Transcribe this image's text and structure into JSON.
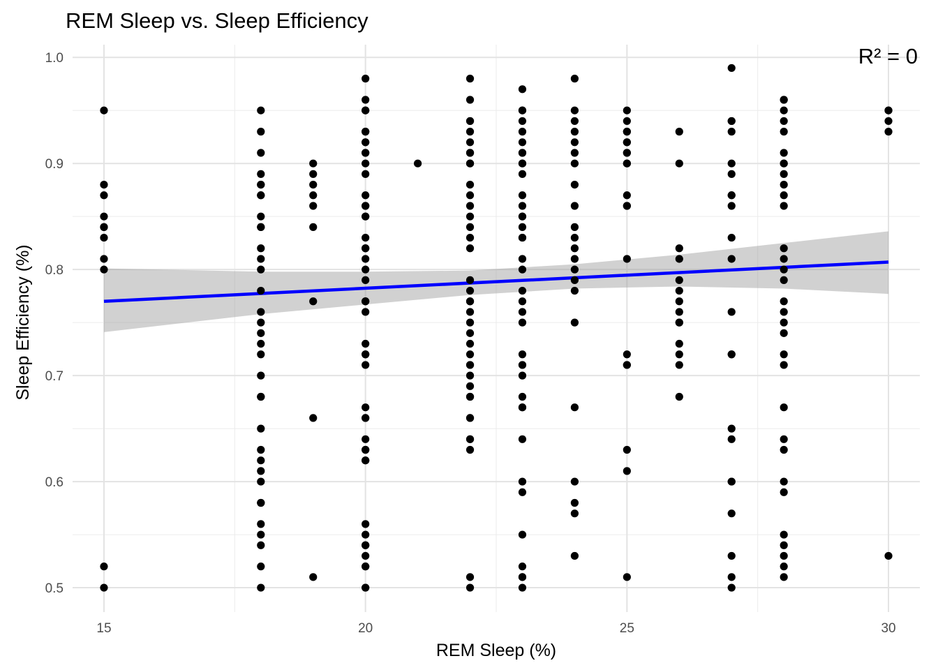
{
  "chart_data": {
    "type": "scatter",
    "title": "REM Sleep vs. Sleep Efficiency",
    "xlabel": "REM Sleep (%)",
    "ylabel": "Sleep Efficiency (%)",
    "annotation": "R² =  0",
    "xlim": [
      14.4,
      30.6
    ],
    "ylim": [
      0.477,
      1.012
    ],
    "xticks": [
      15,
      20,
      25,
      30
    ],
    "yticks": [
      0.5,
      0.6,
      0.7,
      0.8,
      0.9,
      1.0
    ],
    "ytick_labels": [
      "0.5",
      "0.6",
      "0.7",
      "0.8",
      "0.9",
      "1.0"
    ],
    "grid": true,
    "point_color": "#000000",
    "line_color": "#0000ff",
    "band_color": "#999999",
    "points_by_x": [
      {
        "x": 15,
        "y": [
          0.95,
          0.88,
          0.87,
          0.85,
          0.84,
          0.84,
          0.83,
          0.81,
          0.8,
          0.52,
          0.5
        ]
      },
      {
        "x": 18,
        "y": [
          0.95,
          0.93,
          0.91,
          0.89,
          0.88,
          0.88,
          0.87,
          0.87,
          0.85,
          0.84,
          0.84,
          0.82,
          0.81,
          0.8,
          0.78,
          0.76,
          0.75,
          0.74,
          0.73,
          0.72,
          0.7,
          0.68,
          0.68,
          0.65,
          0.63,
          0.62,
          0.61,
          0.6,
          0.58,
          0.58,
          0.56,
          0.55,
          0.54,
          0.52,
          0.5
        ]
      },
      {
        "x": 19,
        "y": [
          0.9,
          0.89,
          0.88,
          0.87,
          0.86,
          0.84,
          0.77,
          0.66,
          0.51
        ]
      },
      {
        "x": 20,
        "y": [
          0.98,
          0.96,
          0.95,
          0.95,
          0.93,
          0.93,
          0.92,
          0.92,
          0.91,
          0.91,
          0.9,
          0.89,
          0.87,
          0.86,
          0.86,
          0.85,
          0.85,
          0.83,
          0.82,
          0.82,
          0.81,
          0.8,
          0.79,
          0.77,
          0.77,
          0.76,
          0.73,
          0.72,
          0.72,
          0.71,
          0.67,
          0.66,
          0.66,
          0.64,
          0.63,
          0.63,
          0.62,
          0.62,
          0.56,
          0.55,
          0.54,
          0.54,
          0.53,
          0.52,
          0.52,
          0.5,
          0.5
        ]
      },
      {
        "x": 21,
        "y": [
          0.9
        ]
      },
      {
        "x": 22,
        "y": [
          0.98,
          0.96,
          0.94,
          0.94,
          0.93,
          0.92,
          0.91,
          0.91,
          0.9,
          0.9,
          0.88,
          0.87,
          0.86,
          0.85,
          0.84,
          0.83,
          0.82,
          0.79,
          0.78,
          0.77,
          0.77,
          0.76,
          0.75,
          0.74,
          0.73,
          0.72,
          0.71,
          0.71,
          0.7,
          0.69,
          0.68,
          0.68,
          0.66,
          0.66,
          0.64,
          0.64,
          0.63,
          0.51,
          0.5
        ]
      },
      {
        "x": 23,
        "y": [
          0.97,
          0.95,
          0.95,
          0.94,
          0.93,
          0.92,
          0.91,
          0.91,
          0.9,
          0.9,
          0.89,
          0.87,
          0.86,
          0.85,
          0.85,
          0.84,
          0.83,
          0.83,
          0.81,
          0.8,
          0.78,
          0.77,
          0.76,
          0.75,
          0.72,
          0.71,
          0.71,
          0.7,
          0.68,
          0.67,
          0.67,
          0.64,
          0.6,
          0.59,
          0.55,
          0.52,
          0.51,
          0.51,
          0.5
        ]
      },
      {
        "x": 24,
        "y": [
          0.98,
          0.95,
          0.94,
          0.93,
          0.92,
          0.91,
          0.9,
          0.88,
          0.86,
          0.84,
          0.83,
          0.82,
          0.81,
          0.8,
          0.79,
          0.78,
          0.75,
          0.67,
          0.6,
          0.58,
          0.57,
          0.53
        ]
      },
      {
        "x": 25,
        "y": [
          0.95,
          0.94,
          0.93,
          0.93,
          0.92,
          0.92,
          0.91,
          0.91,
          0.9,
          0.9,
          0.87,
          0.86,
          0.86,
          0.81,
          0.72,
          0.71,
          0.71,
          0.63,
          0.61,
          0.51
        ]
      },
      {
        "x": 26,
        "y": [
          0.93,
          0.9,
          0.82,
          0.81,
          0.79,
          0.78,
          0.77,
          0.76,
          0.75,
          0.75,
          0.73,
          0.72,
          0.71,
          0.68
        ]
      },
      {
        "x": 27,
        "y": [
          0.99,
          0.94,
          0.94,
          0.93,
          0.9,
          0.89,
          0.87,
          0.87,
          0.86,
          0.83,
          0.81,
          0.76,
          0.72,
          0.72,
          0.65,
          0.64,
          0.6,
          0.6,
          0.57,
          0.53,
          0.51,
          0.5
        ]
      },
      {
        "x": 28,
        "y": [
          0.96,
          0.96,
          0.95,
          0.94,
          0.93,
          0.91,
          0.9,
          0.9,
          0.89,
          0.88,
          0.87,
          0.86,
          0.82,
          0.81,
          0.8,
          0.79,
          0.77,
          0.76,
          0.75,
          0.74,
          0.72,
          0.71,
          0.67,
          0.64,
          0.63,
          0.6,
          0.59,
          0.55,
          0.54,
          0.53,
          0.52,
          0.51
        ]
      },
      {
        "x": 30,
        "y": [
          0.95,
          0.95,
          0.94,
          0.93,
          0.53
        ]
      }
    ],
    "trend_line": {
      "x": [
        15,
        30
      ],
      "y": [
        0.77,
        0.807
      ]
    },
    "confidence_band": {
      "x": [
        15,
        18,
        20,
        22,
        24,
        26,
        28,
        30
      ],
      "lower": [
        0.741,
        0.758,
        0.767,
        0.776,
        0.782,
        0.784,
        0.782,
        0.777
      ],
      "upper": [
        0.801,
        0.798,
        0.798,
        0.799,
        0.805,
        0.814,
        0.825,
        0.836
      ]
    }
  }
}
